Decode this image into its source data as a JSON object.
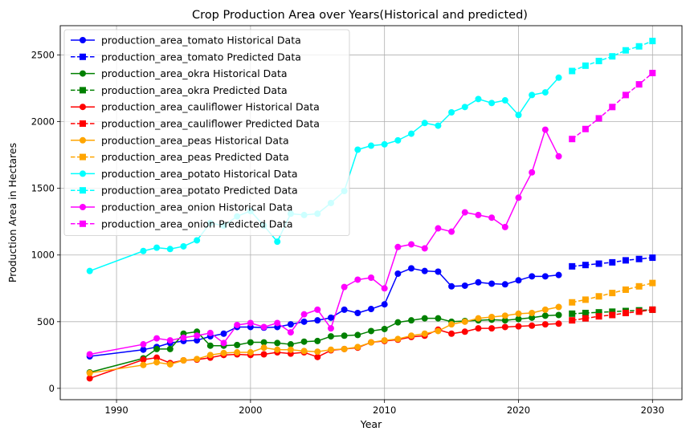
{
  "chart_data": {
    "type": "line",
    "title": "Crop Production Area over Years(Historical and predicted)",
    "xlabel": "Year",
    "ylabel": "Production Area in Hectares",
    "xlim": [
      1985.8,
      2032.2
    ],
    "ylim": [
      -85,
      2720
    ],
    "xticks": [
      1990,
      2000,
      2010,
      2020,
      2030
    ],
    "yticks": [
      0,
      500,
      1000,
      1500,
      2000,
      2500
    ],
    "grid": true,
    "legend_position": "top-left",
    "historical_years": [
      1988,
      1992,
      1993,
      1994,
      1995,
      1996,
      1997,
      1998,
      1999,
      2000,
      2001,
      2002,
      2003,
      2004,
      2005,
      2006,
      2007,
      2008,
      2009,
      2010,
      2011,
      2012,
      2013,
      2014,
      2015,
      2016,
      2017,
      2018,
      2019,
      2020,
      2021,
      2022,
      2023
    ],
    "predicted_years": [
      2024,
      2025,
      2026,
      2027,
      2028,
      2029,
      2030
    ],
    "series": [
      {
        "name": "production_area_tomato Historical Data",
        "color": "#0000ff",
        "kind": "historical",
        "marker": "circle",
        "values": [
          240,
          290,
          310,
          340,
          355,
          360,
          390,
          410,
          460,
          460,
          455,
          460,
          480,
          500,
          510,
          530,
          590,
          565,
          595,
          630,
          860,
          900,
          880,
          875,
          765,
          770,
          795,
          785,
          780,
          810,
          840,
          840,
          850
        ]
      },
      {
        "name": "production_area_tomato Predicted Data",
        "color": "#0000ff",
        "kind": "predicted",
        "marker": "square",
        "values": [
          915,
          925,
          935,
          945,
          960,
          970,
          980
        ]
      },
      {
        "name": "production_area_okra Historical Data",
        "color": "#008000",
        "kind": "historical",
        "marker": "circle",
        "values": [
          120,
          225,
          295,
          295,
          410,
          425,
          320,
          320,
          325,
          345,
          345,
          340,
          330,
          350,
          355,
          390,
          395,
          400,
          430,
          445,
          495,
          510,
          525,
          525,
          500,
          505,
          510,
          515,
          510,
          520,
          530,
          545,
          550
        ]
      },
      {
        "name": "production_area_okra Predicted Data",
        "color": "#008000",
        "kind": "predicted",
        "marker": "square",
        "values": [
          560,
          565,
          570,
          575,
          580,
          585,
          590
        ]
      },
      {
        "name": "production_area_cauliflower Historical Data",
        "color": "#ff0000",
        "kind": "historical",
        "marker": "circle",
        "values": [
          75,
          215,
          230,
          190,
          210,
          215,
          230,
          250,
          255,
          250,
          255,
          270,
          260,
          270,
          235,
          285,
          295,
          305,
          345,
          355,
          365,
          385,
          395,
          440,
          410,
          425,
          450,
          450,
          460,
          465,
          470,
          480,
          485
        ]
      },
      {
        "name": "production_area_cauliflower Predicted Data",
        "color": "#ff0000",
        "kind": "predicted",
        "marker": "square",
        "values": [
          510,
          525,
          540,
          550,
          565,
          575,
          590
        ]
      },
      {
        "name": "production_area_peas Historical Data",
        "color": "#ffa500",
        "kind": "historical",
        "marker": "circle",
        "values": [
          115,
          175,
          195,
          180,
          210,
          220,
          250,
          265,
          270,
          270,
          305,
          290,
          290,
          280,
          275,
          290,
          295,
          310,
          345,
          360,
          370,
          395,
          410,
          430,
          480,
          500,
          525,
          535,
          545,
          560,
          565,
          590,
          610
        ]
      },
      {
        "name": "production_area_peas Predicted Data",
        "color": "#ffa500",
        "kind": "predicted",
        "marker": "square",
        "values": [
          645,
          665,
          690,
          715,
          740,
          765,
          790
        ]
      },
      {
        "name": "production_area_potato Historical Data",
        "color": "#00ffff",
        "kind": "historical",
        "marker": "circle",
        "values": [
          880,
          1030,
          1055,
          1045,
          1065,
          1110,
          1240,
          1220,
          1290,
          1330,
          1220,
          1100,
          1310,
          1300,
          1310,
          1390,
          1480,
          1790,
          1820,
          1830,
          1860,
          1910,
          1990,
          1970,
          2070,
          2110,
          2170,
          2140,
          2160,
          2050,
          2200,
          2220,
          2330
        ]
      },
      {
        "name": "production_area_potato Predicted Data",
        "color": "#00ffff",
        "kind": "predicted",
        "marker": "square",
        "values": [
          2380,
          2420,
          2455,
          2490,
          2535,
          2565,
          2605
        ]
      },
      {
        "name": "production_area_onion Historical Data",
        "color": "#ff00ff",
        "kind": "historical",
        "marker": "circle",
        "values": [
          255,
          330,
          375,
          360,
          380,
          395,
          415,
          340,
          475,
          490,
          460,
          490,
          420,
          555,
          590,
          450,
          760,
          815,
          830,
          750,
          1060,
          1080,
          1050,
          1200,
          1175,
          1320,
          1300,
          1280,
          1210,
          1430,
          1620,
          1940,
          1740
        ]
      },
      {
        "name": "production_area_onion Predicted Data",
        "color": "#ff00ff",
        "kind": "predicted",
        "marker": "square",
        "values": [
          1870,
          1945,
          2025,
          2110,
          2200,
          2280,
          2365
        ]
      }
    ]
  }
}
